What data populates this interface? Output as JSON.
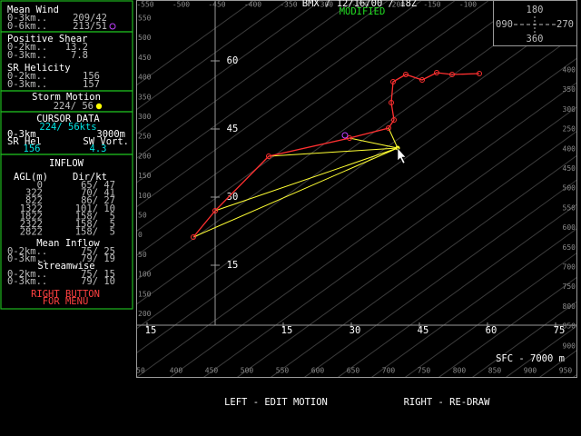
{
  "header": {
    "title": "BMX / 12/16/00 / 18Z",
    "status": "MODIFIED"
  },
  "compass": {
    "top": "180",
    "left": "090",
    "right": "270",
    "bottom": "360"
  },
  "sidebar": {
    "mean_wind": {
      "title": "Mean Wind",
      "rows": [
        {
          "label": "0-3km..",
          "value": "209/42"
        },
        {
          "label": "0-6km..",
          "value": "213/51"
        }
      ]
    },
    "positive_shear": {
      "title": "Positive Shear",
      "rows": [
        {
          "label": "0-2km..",
          "value": "13.2"
        },
        {
          "label": "0-3km..",
          "value": "7.8"
        }
      ]
    },
    "sr_helicity": {
      "title": "SR Helicity",
      "rows": [
        {
          "label": "0-2km..",
          "value": "156"
        },
        {
          "label": "0-3km..",
          "value": "157"
        }
      ]
    },
    "storm_motion": {
      "title": "Storm Motion",
      "value": "224/ 56"
    },
    "cursor_data": {
      "title": "CURSOR DATA",
      "wind": "224/ 56kts",
      "layer": "0-3km",
      "height": "3000m",
      "sr_hel_label": "SR Hel",
      "sw_vort_label": "SW Vort.",
      "sr_hel": "156",
      "sw_vort": "4.3"
    },
    "inflow": {
      "title": "INFLOW",
      "col_agl": "AGL(m)",
      "col_dir": "Dir/kt",
      "rows": [
        [
          "0",
          "65/ 47"
        ],
        [
          "322",
          "70/ 41"
        ],
        [
          "822",
          "86/ 27"
        ],
        [
          "1322",
          "101/ 10"
        ],
        [
          "1822",
          "158/  5"
        ],
        [
          "2322",
          "158/  5"
        ],
        [
          "2822",
          "158/  5"
        ]
      ],
      "mean_title": "Mean Inflow",
      "mean_rows": [
        {
          "label": "0-2km..",
          "value": "75/ 25"
        },
        {
          "label": "0-3km..",
          "value": "79/ 19"
        }
      ],
      "stream_title": "Streamwise",
      "stream_rows": [
        {
          "label": "0-2km..",
          "value": "75/ 15"
        },
        {
          "label": "0-3km..",
          "value": "79/ 10"
        }
      ]
    },
    "menu_hint": [
      "RIGHT BUTTON",
      "FOR MENU"
    ]
  },
  "scales": {
    "top": [
      "-550",
      "-500",
      "-450",
      "-400",
      "-350",
      "-300",
      "-250",
      "-200",
      "-150",
      "-100"
    ],
    "left": [
      "550",
      "500",
      "450",
      "400",
      "350",
      "300",
      "250",
      "200",
      "150",
      "100",
      "50",
      "0",
      "50",
      "100",
      "150",
      "200"
    ],
    "right": [
      "400",
      "350",
      "300",
      "250",
      "400",
      "450",
      "500",
      "550",
      "600",
      "650",
      "700",
      "750",
      "800",
      "850",
      "900"
    ],
    "bottom": [
      "50",
      "400",
      "450",
      "500",
      "550",
      "600",
      "650",
      "700",
      "750",
      "800",
      "850",
      "900",
      "950"
    ]
  },
  "hodograph": {
    "xticks": [
      {
        "value": -15,
        "label": "15"
      },
      15,
      30,
      45,
      60,
      75
    ],
    "yticks": [
      15,
      30,
      45,
      60
    ],
    "u": [
      -4.8,
      0,
      11.8,
      29.6,
      38.2,
      39.4,
      38.8,
      39.2,
      42.0,
      45.6,
      48.8,
      52.2,
      58.2
    ],
    "v": [
      21.2,
      27.0,
      39.0,
      43.0,
      45.2,
      47.0,
      50.8,
      55.4,
      57.0,
      55.8,
      57.4,
      57.0,
      57.2
    ],
    "storm_motion": {
      "u": 40.2,
      "v": 40.8
    },
    "mean_wind": {
      "u": 28.6,
      "v": 43.6
    },
    "depth_label": "SFC - 7000 m"
  },
  "footer": {
    "left": "LEFT - EDIT MOTION",
    "right": "RIGHT - RE-DRAW"
  }
}
